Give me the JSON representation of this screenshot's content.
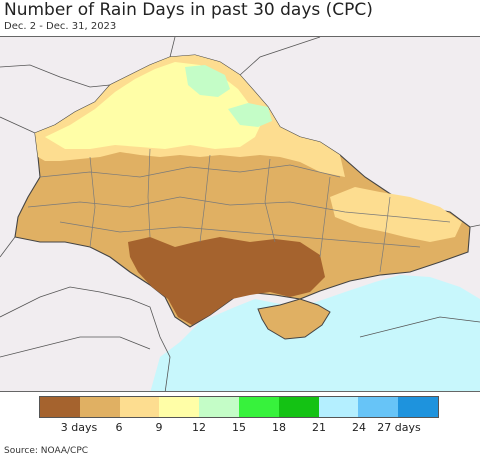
{
  "title": "Number of Rain Days in past 30 days (CPC)",
  "subtitle": "Dec. 2 - Dec. 31, 2023",
  "legend": {
    "colors": [
      "#a5632e",
      "#e0b063",
      "#fddd90",
      "#fffea7",
      "#c4fdc7",
      "#37f23c",
      "#14c214",
      "#b4efff",
      "#67c4f7",
      "#1e93dd"
    ],
    "labels": [
      "3 days",
      "6",
      "9",
      "12",
      "15",
      "18",
      "21",
      "24",
      "27 days"
    ]
  },
  "map_colors": {
    "sea": "#c8f7fc",
    "outside_land": "#f1edf0",
    "borders": "#555555",
    "oblast_lines": "#7a7a7a"
  },
  "source": "Source: NOAA/CPC"
}
